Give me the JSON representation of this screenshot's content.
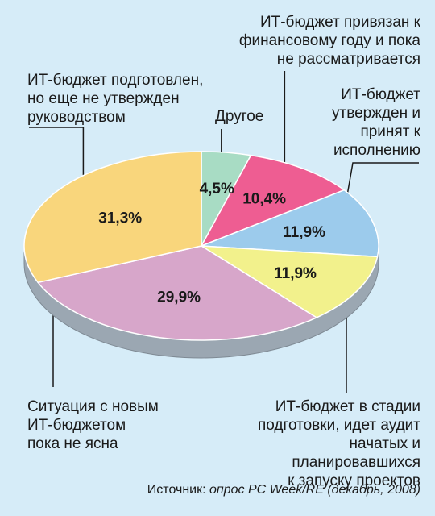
{
  "chart_data": {
    "type": "pie",
    "colors": {
      "background": "#d6ecf8",
      "other": "#a8dcc4",
      "fiscal_year": "#ee5d92",
      "approved": "#9ccbec",
      "in_preparation": "#f2f18c",
      "unclear": "#d7a6ca",
      "not_approved": "#f9d67c",
      "pie_side": "#9ba7b2"
    },
    "slices": [
      {
        "key": "other",
        "value": 4.5,
        "value_label": "4,5%",
        "label": "Другое"
      },
      {
        "key": "fiscal_year",
        "value": 10.4,
        "value_label": "10,4%",
        "label": "ИТ-бюджет привязан к\nфинансовому году и пока\nне рассматривается"
      },
      {
        "key": "approved",
        "value": 11.9,
        "value_label": "11,9%",
        "label": "ИТ-бюджет\nутвержден и\nпринят к\nисполнению"
      },
      {
        "key": "in_preparation",
        "value": 11.9,
        "value_label": "11,9%",
        "label": "ИТ-бюджет в стадии\nподготовки, идет аудит\nначатых и планировавшихся\nк запуску проектов"
      },
      {
        "key": "unclear",
        "value": 29.9,
        "value_label": "29,9%",
        "label": "Ситуация с новым\nИТ-бюджетом\nпока не ясна"
      },
      {
        "key": "not_approved",
        "value": 31.3,
        "value_label": "31,3%",
        "label": "ИТ-бюджет подготовлен,\nно еще не утвержден\nруководством"
      }
    ]
  },
  "source": {
    "prefix": "Источник: ",
    "text": "опрос PC Week/RE (декабрь, 2008)"
  }
}
